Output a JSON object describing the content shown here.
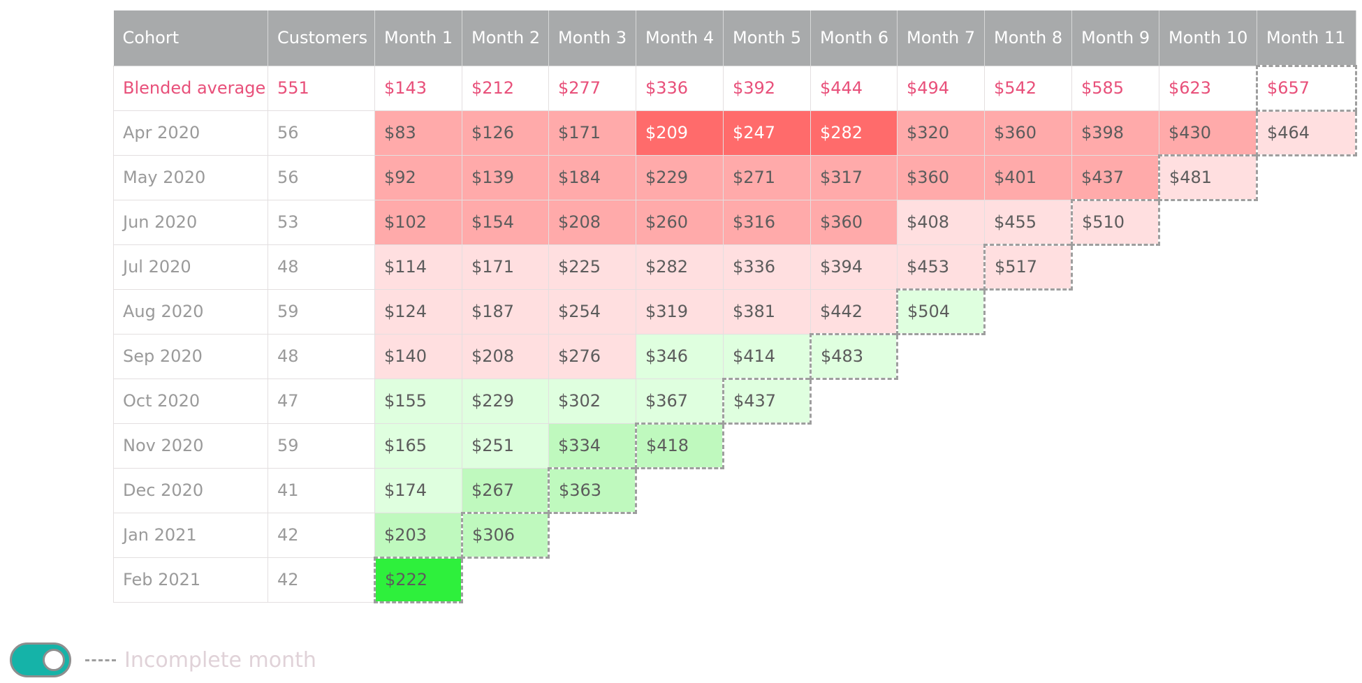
{
  "chart_data": {
    "type": "table",
    "columns": [
      "Cohort",
      "Customers",
      "Month 1",
      "Month 2",
      "Month 3",
      "Month 4",
      "Month 5",
      "Month 6",
      "Month 7",
      "Month 8",
      "Month 9",
      "Month 10",
      "Month 11"
    ],
    "blended_average": {
      "label": "Blended average",
      "customers": "551",
      "values": [
        "$143",
        "$212",
        "$277",
        "$336",
        "$392",
        "$444",
        "$494",
        "$542",
        "$585",
        "$623",
        "$657"
      ],
      "incomplete_index": 10
    },
    "rows": [
      {
        "cohort": "Apr 2020",
        "customers": "56",
        "values": [
          "$83",
          "$126",
          "$171",
          "$209",
          "$247",
          "$282",
          "$320",
          "$360",
          "$398",
          "$430",
          "$464"
        ],
        "colors": [
          "#ffaaaa",
          "#ffaaaa",
          "#ffaaaa",
          "#ff6b6b",
          "#ff6b6b",
          "#ff6b6b",
          "#ffaaaa",
          "#ffaaaa",
          "#ffaaaa",
          "#ffaaaa",
          "#ffdfe0"
        ],
        "incomplete_index": 10
      },
      {
        "cohort": "May 2020",
        "customers": "56",
        "values": [
          "$92",
          "$139",
          "$184",
          "$229",
          "$271",
          "$317",
          "$360",
          "$401",
          "$437",
          "$481"
        ],
        "colors": [
          "#ffaaaa",
          "#ffaaaa",
          "#ffaaaa",
          "#ffaaaa",
          "#ffaaaa",
          "#ffaaaa",
          "#ffaaaa",
          "#ffaaaa",
          "#ffaaaa",
          "#ffdfe0"
        ],
        "incomplete_index": 9
      },
      {
        "cohort": "Jun 2020",
        "customers": "53",
        "values": [
          "$102",
          "$154",
          "$208",
          "$260",
          "$316",
          "$360",
          "$408",
          "$455",
          "$510"
        ],
        "colors": [
          "#ffaaaa",
          "#ffaaaa",
          "#ffaaaa",
          "#ffaaaa",
          "#ffaaaa",
          "#ffaaaa",
          "#ffdfe0",
          "#ffdfe0",
          "#ffdfe0"
        ],
        "incomplete_index": 8
      },
      {
        "cohort": "Jul 2020",
        "customers": "48",
        "values": [
          "$114",
          "$171",
          "$225",
          "$282",
          "$336",
          "$394",
          "$453",
          "$517"
        ],
        "colors": [
          "#ffdfe0",
          "#ffdfe0",
          "#ffdfe0",
          "#ffdfe0",
          "#ffdfe0",
          "#ffdfe0",
          "#ffdfe0",
          "#ffdfe0"
        ],
        "incomplete_index": 7
      },
      {
        "cohort": "Aug 2020",
        "customers": "59",
        "values": [
          "$124",
          "$187",
          "$254",
          "$319",
          "$381",
          "$442",
          "$504"
        ],
        "colors": [
          "#ffdfe0",
          "#ffdfe0",
          "#ffdfe0",
          "#ffdfe0",
          "#ffdfe0",
          "#ffdfe0",
          "#dfffdf"
        ],
        "incomplete_index": 6
      },
      {
        "cohort": "Sep 2020",
        "customers": "48",
        "values": [
          "$140",
          "$208",
          "$276",
          "$346",
          "$414",
          "$483"
        ],
        "colors": [
          "#ffdfe0",
          "#ffdfe0",
          "#ffdfe0",
          "#dfffdf",
          "#dfffdf",
          "#dfffdf"
        ],
        "incomplete_index": 5
      },
      {
        "cohort": "Oct 2020",
        "customers": "47",
        "values": [
          "$155",
          "$229",
          "$302",
          "$367",
          "$437"
        ],
        "colors": [
          "#dfffdf",
          "#dfffdf",
          "#dfffdf",
          "#dfffdf",
          "#dfffdf"
        ],
        "incomplete_index": 4
      },
      {
        "cohort": "Nov 2020",
        "customers": "59",
        "values": [
          "$165",
          "$251",
          "$334",
          "$418"
        ],
        "colors": [
          "#dfffdf",
          "#dfffdf",
          "#bff9be",
          "#bff9be"
        ],
        "incomplete_index": 3
      },
      {
        "cohort": "Dec 2020",
        "customers": "41",
        "values": [
          "$174",
          "$267",
          "$363"
        ],
        "colors": [
          "#dfffdf",
          "#bff9be",
          "#bff9be"
        ],
        "incomplete_index": 2
      },
      {
        "cohort": "Jan 2021",
        "customers": "42",
        "values": [
          "$203",
          "$306"
        ],
        "colors": [
          "#bff9be",
          "#bff9be"
        ],
        "incomplete_index": 1
      },
      {
        "cohort": "Feb 2021",
        "customers": "42",
        "values": [
          "$222"
        ],
        "colors": [
          "#2ef03c"
        ],
        "incomplete_index": 0
      }
    ]
  },
  "legend": {
    "toggle_on": true,
    "toggle_color": "#15b3a8",
    "label": "Incomplete month"
  }
}
